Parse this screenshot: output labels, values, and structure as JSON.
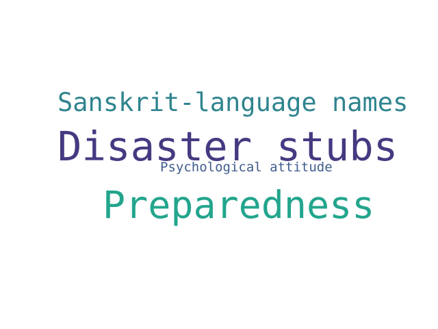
{
  "words": [
    {
      "text": "Sanskrit-language names",
      "color": "#2f848e"
    },
    {
      "text": "Disaster stubs",
      "color": "#453a81"
    },
    {
      "text": "Psychological attitude",
      "color": "#3e5c8c"
    },
    {
      "text": "Preparedness",
      "color": "#23a58d"
    }
  ]
}
